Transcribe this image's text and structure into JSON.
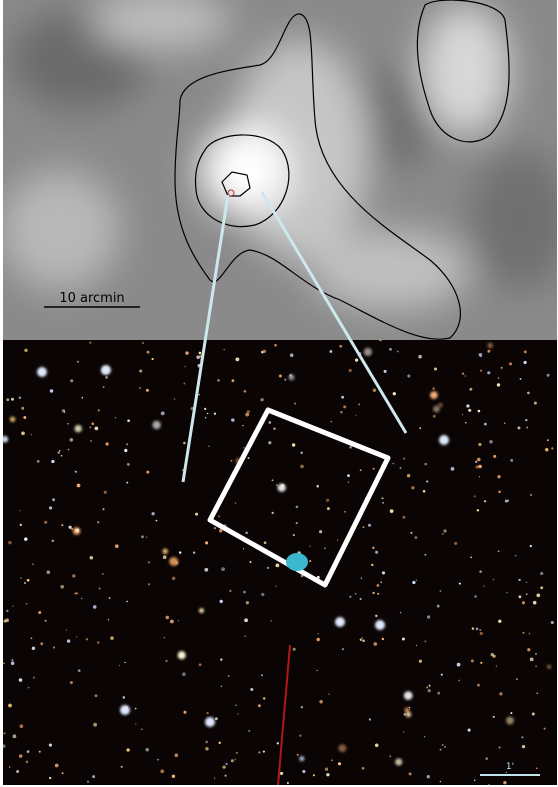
{
  "top_panel": {
    "scale_label": "10 arcmin"
  },
  "bottom_panel": {
    "scale_label": "1'"
  }
}
